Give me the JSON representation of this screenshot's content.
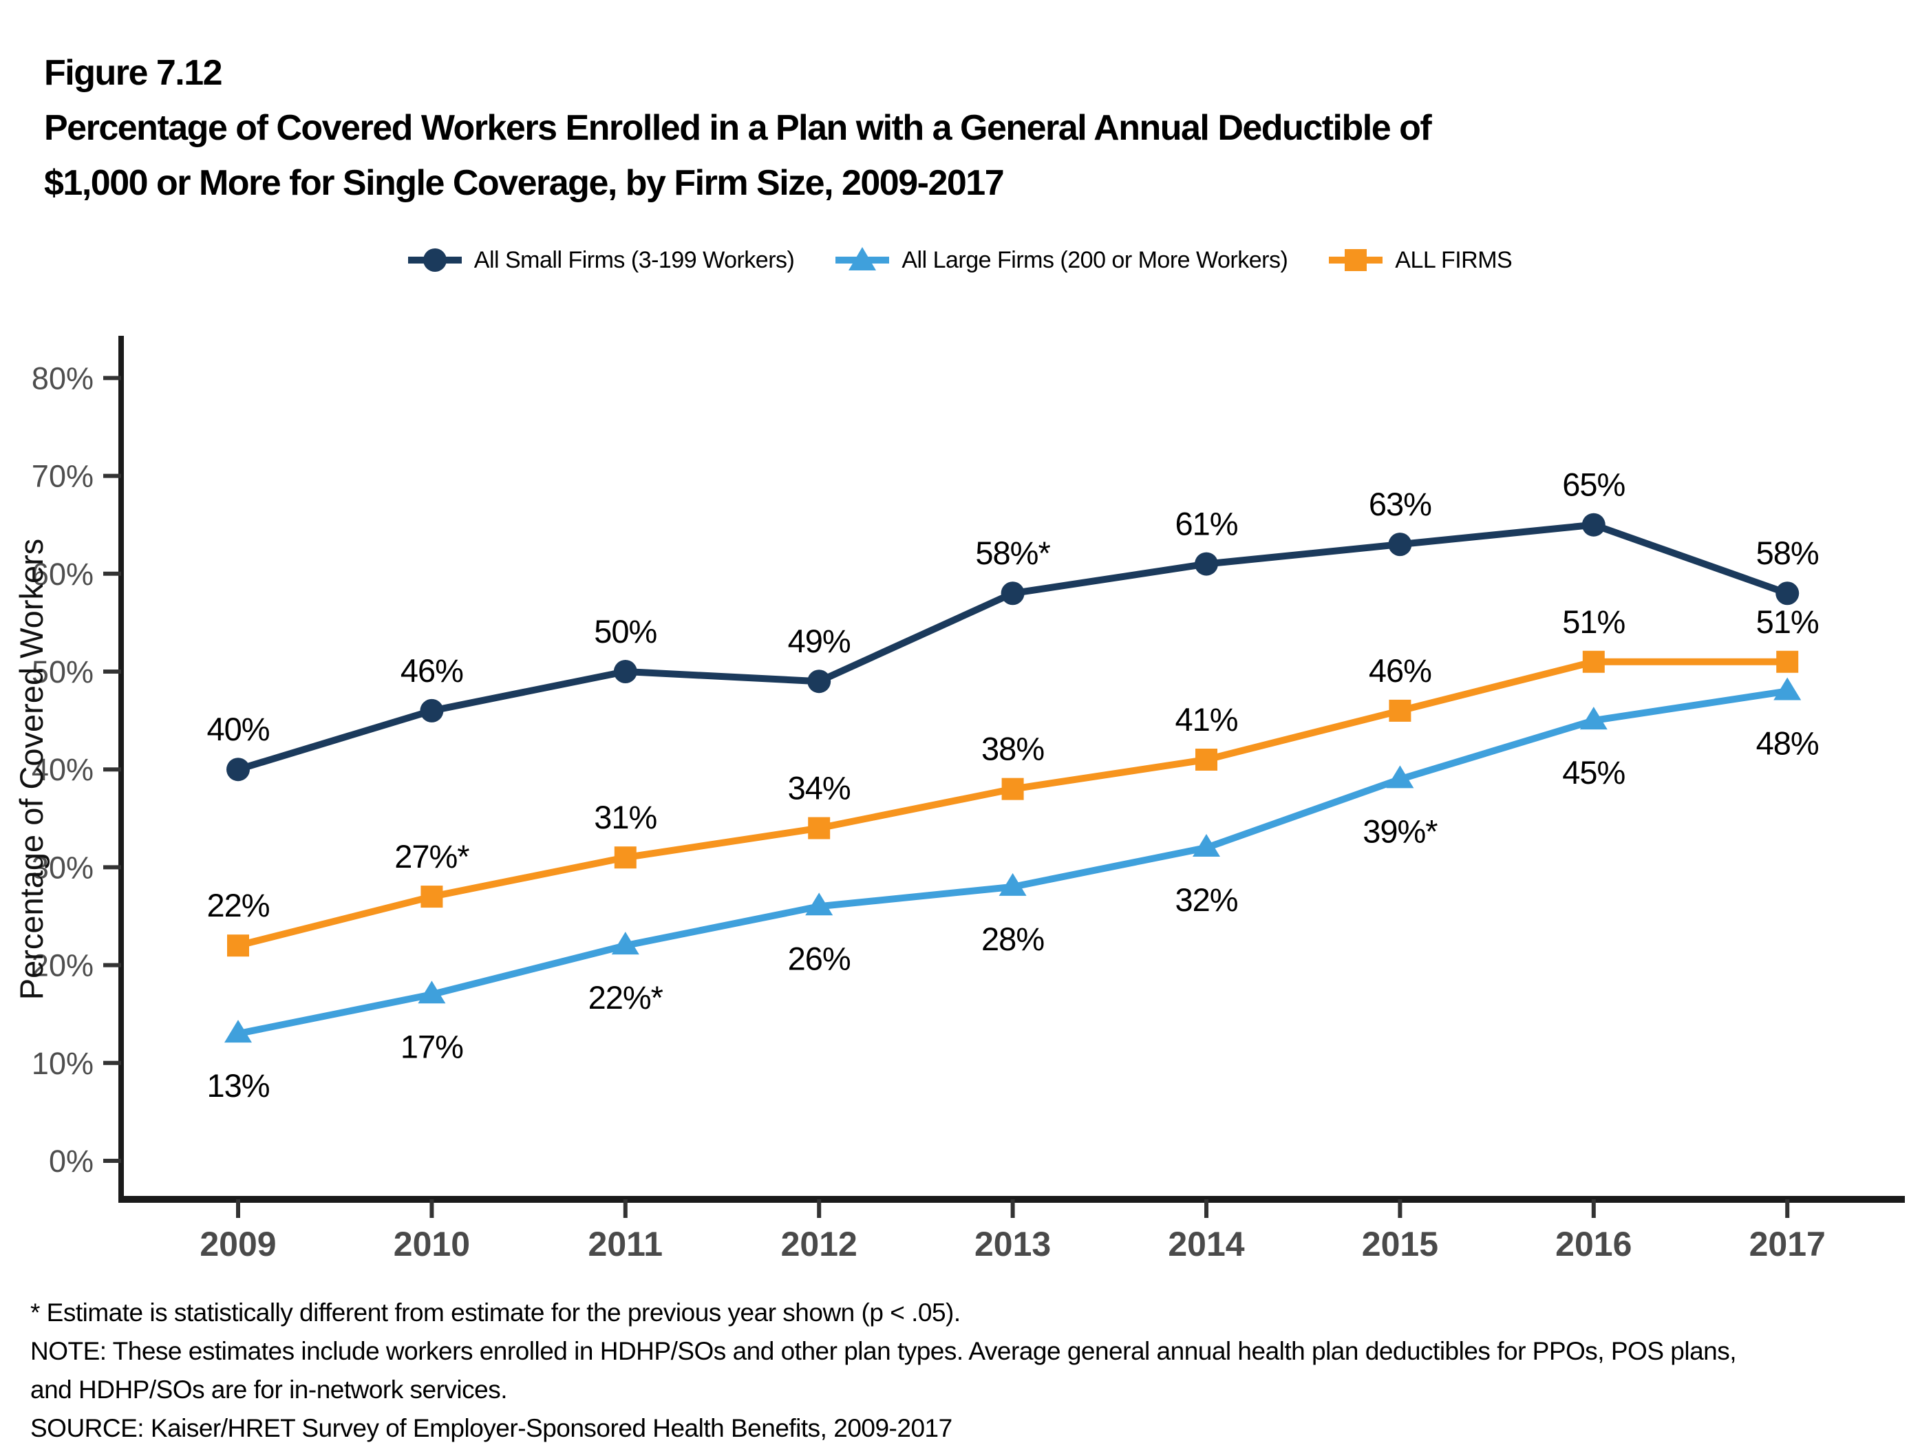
{
  "figure": {
    "label": "Figure 7.12",
    "title_line1": "Percentage of Covered Workers Enrolled in a Plan with a General Annual Deductible of",
    "title_line2": "$1,000 or More for Single Coverage, by Firm Size, 2009-2017"
  },
  "chart_data": {
    "type": "line",
    "title": "Percentage of Covered Workers Enrolled in a Plan with a General Annual Deductible of $1,000 or More for Single Coverage, by Firm Size, 2009-2017",
    "xlabel": "",
    "ylabel": "Percentage of Covered Workers",
    "x": [
      "2009",
      "2010",
      "2011",
      "2012",
      "2013",
      "2014",
      "2015",
      "2016",
      "2017"
    ],
    "ylim": [
      0,
      80
    ],
    "yticks": [
      "0%",
      "10%",
      "20%",
      "30%",
      "40%",
      "50%",
      "60%",
      "70%",
      "80%"
    ],
    "grid": false,
    "legend_position": "top",
    "series": [
      {
        "id": "all-small-firms",
        "name": "All Small Firms (3-199 Workers)",
        "color": "#1B3A5C",
        "marker": "circle",
        "label_position": "above",
        "values": [
          40,
          46,
          50,
          49,
          58,
          61,
          63,
          65,
          58
        ],
        "labels": [
          "40%",
          "46%",
          "50%",
          "49%",
          "58%*",
          "61%",
          "63%",
          "65%",
          "58%"
        ]
      },
      {
        "id": "all-large-firms",
        "name": "All Large Firms (200 or More Workers)",
        "color": "#3FA0DC",
        "marker": "triangle",
        "label_position": "below",
        "values": [
          13,
          17,
          22,
          26,
          28,
          32,
          39,
          45,
          48
        ],
        "labels": [
          "13%",
          "17%",
          "22%*",
          "26%",
          "28%",
          "32%",
          "39%*",
          "45%",
          "48%"
        ]
      },
      {
        "id": "all-firms",
        "name": "ALL FIRMS",
        "color": "#F7941D",
        "marker": "square",
        "label_position": "above",
        "values": [
          22,
          27,
          31,
          34,
          38,
          41,
          46,
          51,
          51
        ],
        "labels": [
          "22%",
          "27%*",
          "31%",
          "34%",
          "38%",
          "41%",
          "46%",
          "51%",
          "51%"
        ]
      }
    ]
  },
  "footnotes": {
    "asterisk": "* Estimate is statistically different from estimate for the previous year shown (p < .05).",
    "note_line1": "NOTE: These estimates include workers enrolled in HDHP/SOs and other plan types. Average general annual health plan deductibles for PPOs, POS plans,",
    "note_line2": "and HDHP/SOs are for in-network services.",
    "source": "SOURCE: Kaiser/HRET Survey of Employer-Sponsored Health Benefits, 2009-2017"
  },
  "colors": {
    "axis": "#1a1a1a",
    "y_tick_label": "#4d4d4d",
    "x_tick_label": "#4a4a4a",
    "data_label": "#000000"
  }
}
